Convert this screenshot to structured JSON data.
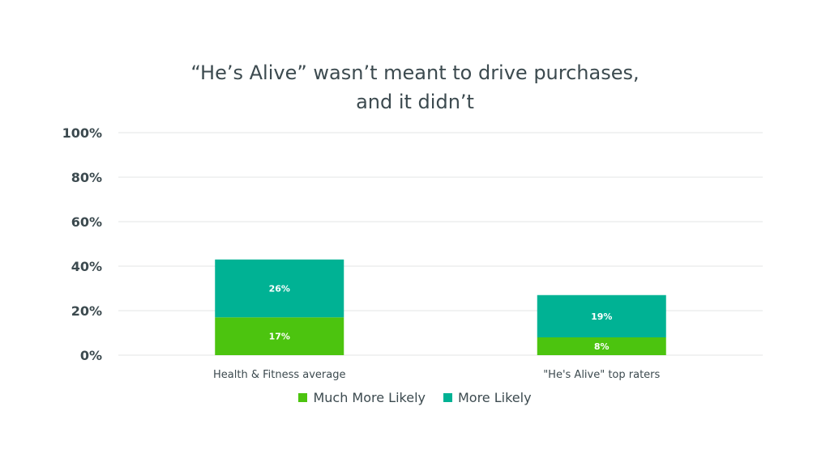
{
  "chart_data": {
    "type": "bar",
    "stacked": true,
    "title_lines": [
      "“He’s Alive” wasn’t meant to drive purchases,",
      "and it didn’t"
    ],
    "categories": [
      "Health & Fitness average",
      "\"He's Alive\" top raters"
    ],
    "series": [
      {
        "name": "Much More Likely",
        "values": [
          17,
          8
        ],
        "labels": [
          "17%",
          "8%"
        ],
        "color": "#4cc40f"
      },
      {
        "name": "More Likely",
        "values": [
          26,
          19
        ],
        "labels": [
          "26%",
          "19%"
        ],
        "color": "#00b294"
      }
    ],
    "ylim": [
      0,
      100
    ],
    "yticks": [
      0,
      20,
      40,
      60,
      80,
      100
    ],
    "ytick_labels": [
      "0%",
      "20%",
      "40%",
      "60%",
      "80%",
      "100%"
    ],
    "grid": true,
    "legend_position": "bottom",
    "xlabel": "",
    "ylabel": ""
  }
}
